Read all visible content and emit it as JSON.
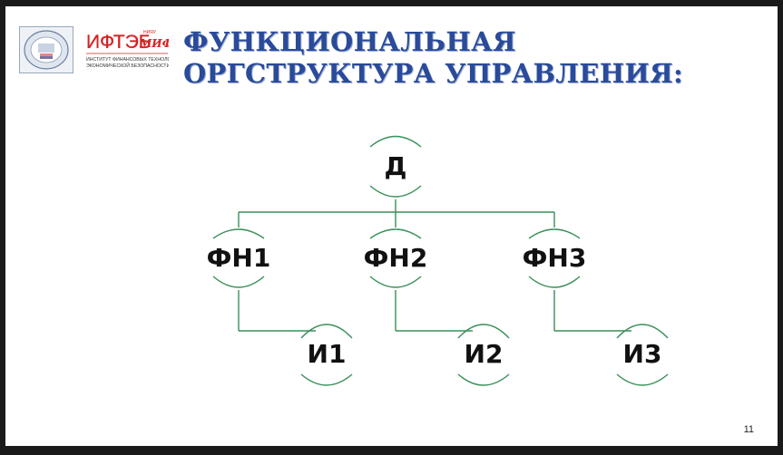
{
  "title": {
    "line1": "ФУНКЦИОНАЛЬНАЯ",
    "line2": "ОРГСТРУКТУРА УПРАВЛЕНИЯ:"
  },
  "logos": {
    "institute_abbr": "ИФТЭБ",
    "institute_full_line1": "ИНСТИТУТ ФИНАНСОВЫХ ТЕХНОЛОГИЙ И",
    "institute_full_line2": "ЭКОНОМИЧЕСКОЙ БЕЗОПАСНОСТИ",
    "university": "МИФИ",
    "university_prefix": "НИЯУ"
  },
  "diagram": {
    "root": "Д",
    "functional": [
      "ФН1",
      "ФН2",
      "ФН3"
    ],
    "executors": [
      "И1",
      "И2",
      "И3"
    ],
    "line_color": "#3a8f5a"
  },
  "page_number": "11"
}
